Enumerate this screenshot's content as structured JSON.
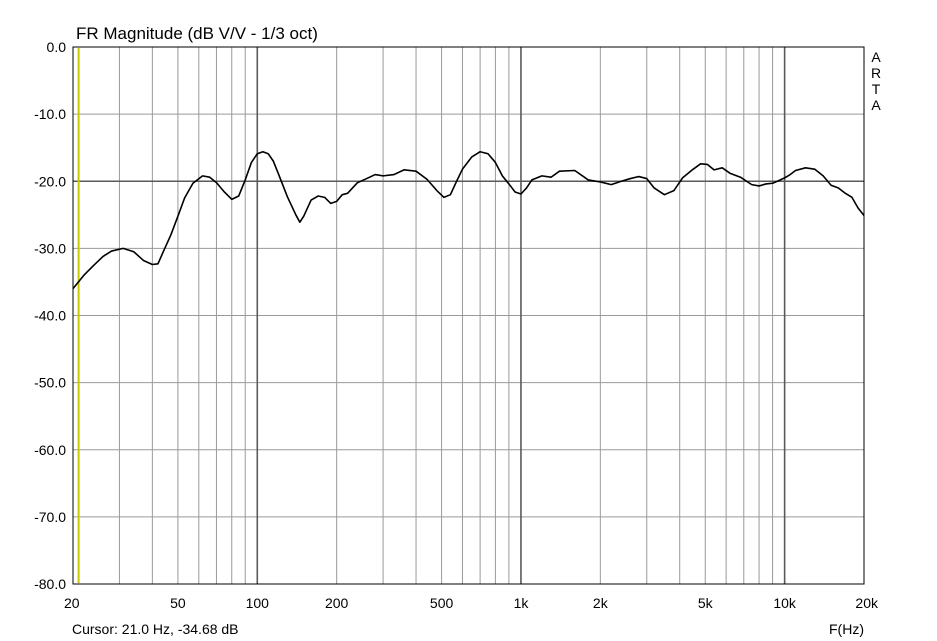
{
  "window": {
    "brand_letters": [
      "A",
      "R",
      "T",
      "A"
    ]
  },
  "status": {
    "cursor_text": "Cursor: 21.0 Hz, -34.68 dB"
  },
  "colors": {
    "background": "#ffffff",
    "grid": "#9a9a9a",
    "grid_major": "#5a5a5a",
    "curve": "#000000",
    "cursor": "#c8c800"
  },
  "chart_data": {
    "type": "line",
    "title": "FR Magnitude (dB V/V - 1/3 oct)",
    "xlabel": "F(Hz)",
    "ylabel": "",
    "x_scale": "log",
    "xlim": [
      20,
      20000
    ],
    "ylim": [
      -80,
      0
    ],
    "grid": true,
    "x_ticks": [
      20,
      50,
      100,
      200,
      500,
      1000,
      2000,
      5000,
      10000,
      20000
    ],
    "x_tick_labels": [
      "20",
      "50",
      "100",
      "200",
      "500",
      "1k",
      "2k",
      "5k",
      "10k",
      "20k"
    ],
    "y_ticks": [
      0,
      -10,
      -20,
      -30,
      -40,
      -50,
      -60,
      -70,
      -80
    ],
    "y_tick_labels": [
      "0.0",
      "-10.0",
      "-20.0",
      "-30.0",
      "-40.0",
      "-50.0",
      "-60.0",
      "-70.0",
      "-80.0"
    ],
    "cursor": {
      "x": 21.0,
      "y": -34.68
    },
    "series": [
      {
        "x": [
          20,
          22,
          24,
          26,
          28,
          31,
          34,
          37,
          40,
          42,
          44,
          47,
          50,
          53,
          57,
          62,
          66,
          70,
          75,
          80,
          85,
          90,
          95,
          100,
          105,
          110,
          115,
          120,
          130,
          140,
          145,
          150,
          160,
          170,
          180,
          190,
          200,
          210,
          220,
          240,
          260,
          280,
          300,
          330,
          360,
          400,
          440,
          480,
          510,
          540,
          570,
          600,
          650,
          700,
          750,
          800,
          850,
          900,
          950,
          1000,
          1050,
          1100,
          1200,
          1300,
          1400,
          1600,
          1800,
          2000,
          2200,
          2400,
          2600,
          2800,
          3000,
          3200,
          3500,
          3800,
          4100,
          4500,
          4800,
          5100,
          5400,
          5800,
          6200,
          6800,
          7500,
          8000,
          8500,
          9000,
          9500,
          10000,
          10500,
          11000,
          12000,
          13000,
          14000,
          15000,
          16000,
          17000,
          18000,
          19000,
          20000
        ],
        "y": [
          -36.0,
          -34.0,
          -32.5,
          -31.2,
          -30.4,
          -30.0,
          -30.5,
          -31.8,
          -32.4,
          -32.3,
          -30.5,
          -28.0,
          -25.2,
          -22.5,
          -20.3,
          -19.2,
          -19.4,
          -20.2,
          -21.6,
          -22.7,
          -22.2,
          -19.8,
          -17.2,
          -15.9,
          -15.6,
          -15.9,
          -17.0,
          -18.8,
          -22.3,
          -25.0,
          -26.1,
          -25.2,
          -22.8,
          -22.2,
          -22.4,
          -23.3,
          -23.0,
          -22.0,
          -21.8,
          -20.2,
          -19.6,
          -19.0,
          -19.2,
          -19.0,
          -18.3,
          -18.5,
          -19.7,
          -21.4,
          -22.4,
          -22.0,
          -20.0,
          -18.2,
          -16.4,
          -15.6,
          -15.9,
          -17.2,
          -19.2,
          -20.4,
          -21.6,
          -21.9,
          -21.0,
          -19.8,
          -19.2,
          -19.4,
          -18.5,
          -18.4,
          -19.8,
          -20.1,
          -20.5,
          -20.0,
          -19.6,
          -19.3,
          -19.6,
          -21.0,
          -22.0,
          -21.4,
          -19.5,
          -18.2,
          -17.4,
          -17.5,
          -18.3,
          -18.0,
          -18.8,
          -19.4,
          -20.5,
          -20.7,
          -20.4,
          -20.3,
          -19.9,
          -19.5,
          -19.0,
          -18.4,
          -18.0,
          -18.2,
          -19.2,
          -20.6,
          -21.0,
          -21.8,
          -22.4,
          -24.0,
          -25.1
        ]
      }
    ]
  }
}
